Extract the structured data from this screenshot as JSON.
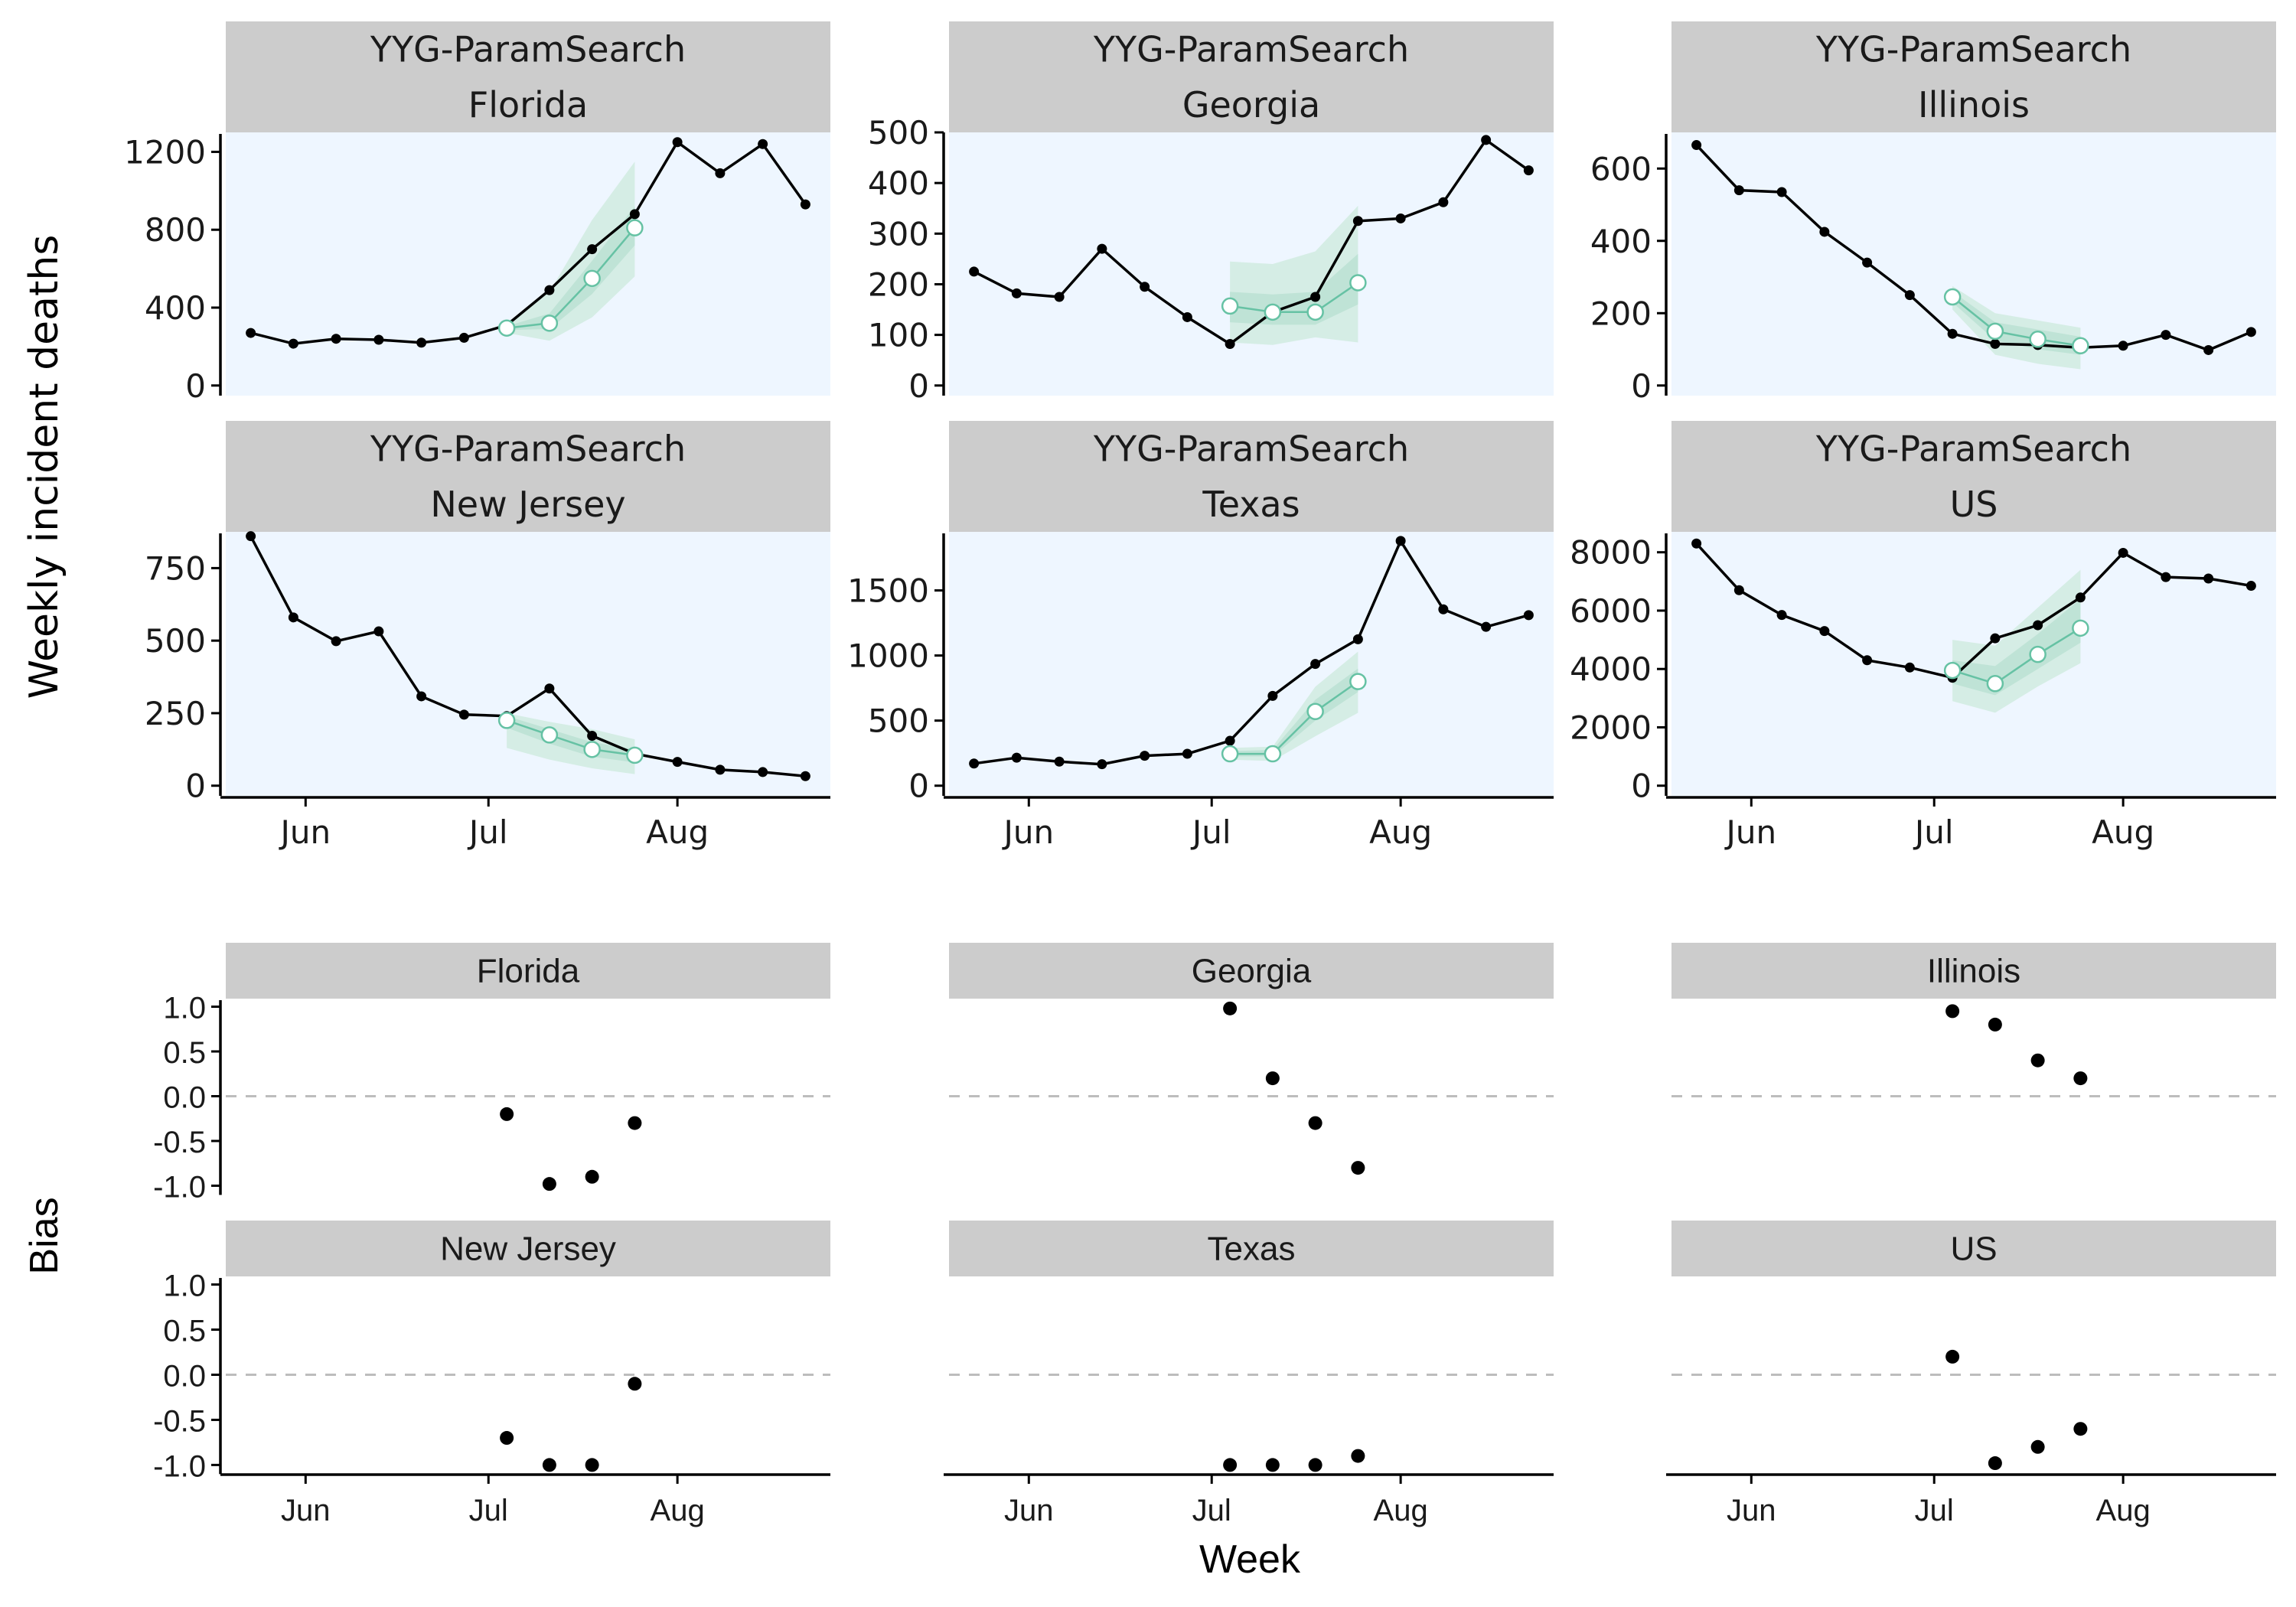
{
  "figure": {
    "top_ylabel": "Weekly incident deaths",
    "bottom_ylabel": "Bias",
    "bottom_xlabel": "Week",
    "model_name": "YYG-ParamSearch",
    "colors": {
      "strip": "#cccccc",
      "panel_background": "#eef6ff",
      "observed": "#000000",
      "forecast": "#66c2a4",
      "interval_outer": "#d5ede5",
      "interval_inner": "#bfe3d6",
      "zero_line": "#bdbdbd"
    },
    "x_ticks": [
      {
        "label": "Jun",
        "date": "2020-06-01"
      },
      {
        "label": "Jul",
        "date": "2020-07-01"
      },
      {
        "label": "Aug",
        "date": "2020-08-01"
      }
    ]
  },
  "chart_data": [
    {
      "type": "line",
      "panel": "top",
      "location": "Florida",
      "model": "YYG-ParamSearch",
      "ylim": [
        0,
        1300
      ],
      "yticks": [
        0,
        400,
        800,
        1200
      ],
      "observed": {
        "x": [
          "2020-05-23",
          "2020-05-30",
          "2020-06-06",
          "2020-06-13",
          "2020-06-20",
          "2020-06-27",
          "2020-07-04",
          "2020-07-11",
          "2020-07-18",
          "2020-07-25",
          "2020-08-01",
          "2020-08-08",
          "2020-08-15",
          "2020-08-22"
        ],
        "y": [
          270,
          215,
          240,
          235,
          220,
          245,
          310,
          490,
          700,
          880,
          1250,
          1090,
          1240,
          930
        ]
      },
      "forecast": {
        "x": [
          "2020-07-04",
          "2020-07-11",
          "2020-07-18",
          "2020-07-25"
        ],
        "median": [
          295,
          320,
          550,
          810
        ],
        "lower_95": [
          270,
          230,
          350,
          560
        ],
        "upper_95": [
          320,
          480,
          850,
          1150
        ],
        "lower_50": [
          285,
          290,
          470,
          720
        ],
        "upper_50": [
          305,
          370,
          640,
          920
        ]
      }
    },
    {
      "type": "line",
      "panel": "top",
      "location": "Georgia",
      "model": "YYG-ParamSearch",
      "ylim": [
        0,
        500
      ],
      "yticks": [
        0,
        100,
        200,
        300,
        400,
        500
      ],
      "observed": {
        "x": [
          "2020-05-23",
          "2020-05-30",
          "2020-06-06",
          "2020-06-13",
          "2020-06-20",
          "2020-06-27",
          "2020-07-04",
          "2020-07-11",
          "2020-07-18",
          "2020-07-25",
          "2020-08-01",
          "2020-08-08",
          "2020-08-15",
          "2020-08-22"
        ],
        "y": [
          225,
          182,
          175,
          270,
          195,
          135,
          82,
          145,
          175,
          325,
          330,
          362,
          485,
          425
        ]
      },
      "forecast": {
        "x": [
          "2020-07-04",
          "2020-07-11",
          "2020-07-18",
          "2020-07-25"
        ],
        "median": [
          157,
          145,
          145,
          203
        ],
        "lower_95": [
          85,
          80,
          95,
          85
        ],
        "upper_95": [
          245,
          240,
          265,
          355
        ],
        "lower_50": [
          125,
          120,
          120,
          160
        ],
        "upper_50": [
          185,
          180,
          185,
          260
        ]
      }
    },
    {
      "type": "line",
      "panel": "top",
      "location": "Illinois",
      "model": "YYG-ParamSearch",
      "ylim": [
        0,
        700
      ],
      "yticks": [
        0,
        200,
        400,
        600
      ],
      "observed": {
        "x": [
          "2020-05-23",
          "2020-05-30",
          "2020-06-06",
          "2020-06-13",
          "2020-06-20",
          "2020-06-27",
          "2020-07-04",
          "2020-07-11",
          "2020-07-18",
          "2020-07-25",
          "2020-08-01",
          "2020-08-08",
          "2020-08-15",
          "2020-08-22"
        ],
        "y": [
          665,
          540,
          535,
          425,
          340,
          250,
          143,
          115,
          112,
          105,
          110,
          140,
          98,
          148
        ]
      },
      "forecast": {
        "x": [
          "2020-07-04",
          "2020-07-11",
          "2020-07-18",
          "2020-07-25"
        ],
        "median": [
          245,
          150,
          128,
          110
        ],
        "lower_95": [
          210,
          85,
          60,
          45
        ],
        "upper_95": [
          275,
          200,
          180,
          160
        ],
        "lower_50": [
          230,
          125,
          100,
          85
        ],
        "upper_50": [
          260,
          175,
          155,
          135
        ]
      }
    },
    {
      "type": "line",
      "panel": "top",
      "location": "New Jersey",
      "model": "YYG-ParamSearch",
      "ylim": [
        0,
        875
      ],
      "yticks": [
        0,
        250,
        500,
        750
      ],
      "observed": {
        "x": [
          "2020-05-23",
          "2020-05-30",
          "2020-06-06",
          "2020-06-13",
          "2020-06-20",
          "2020-06-27",
          "2020-07-04",
          "2020-07-11",
          "2020-07-18",
          "2020-07-25",
          "2020-08-01",
          "2020-08-08",
          "2020-08-15",
          "2020-08-22"
        ],
        "y": [
          860,
          580,
          498,
          532,
          308,
          245,
          240,
          335,
          172,
          110,
          82,
          55,
          47,
          33
        ]
      },
      "forecast": {
        "x": [
          "2020-07-04",
          "2020-07-11",
          "2020-07-18",
          "2020-07-25"
        ],
        "median": [
          225,
          175,
          125,
          105
        ],
        "lower_95": [
          130,
          90,
          60,
          40
        ],
        "upper_95": [
          250,
          220,
          195,
          160
        ],
        "lower_50": [
          200,
          145,
          100,
          80
        ],
        "upper_50": [
          240,
          195,
          150,
          125
        ]
      }
    },
    {
      "type": "line",
      "panel": "top",
      "location": "Texas",
      "model": "YYG-ParamSearch",
      "ylim": [
        0,
        1950
      ],
      "yticks": [
        0,
        500,
        1000,
        1500
      ],
      "observed": {
        "x": [
          "2020-05-23",
          "2020-05-30",
          "2020-06-06",
          "2020-06-13",
          "2020-06-20",
          "2020-06-27",
          "2020-07-04",
          "2020-07-11",
          "2020-07-18",
          "2020-07-25",
          "2020-08-01",
          "2020-08-08",
          "2020-08-15",
          "2020-08-22"
        ],
        "y": [
          170,
          215,
          185,
          165,
          230,
          245,
          345,
          690,
          935,
          1125,
          1880,
          1355,
          1220,
          1310
        ]
      },
      "forecast": {
        "x": [
          "2020-07-04",
          "2020-07-11",
          "2020-07-18",
          "2020-07-25"
        ],
        "median": [
          245,
          245,
          570,
          800
        ],
        "lower_95": [
          200,
          190,
          380,
          560
        ],
        "upper_95": [
          290,
          300,
          760,
          1030
        ],
        "lower_50": [
          225,
          225,
          500,
          720
        ],
        "upper_50": [
          265,
          275,
          660,
          900
        ]
      }
    },
    {
      "type": "line",
      "panel": "top",
      "location": "US",
      "model": "YYG-ParamSearch",
      "ylim": [
        0,
        8700
      ],
      "yticks": [
        0,
        2000,
        4000,
        6000,
        8000
      ],
      "observed": {
        "x": [
          "2020-05-23",
          "2020-05-30",
          "2020-06-06",
          "2020-06-13",
          "2020-06-20",
          "2020-06-27",
          "2020-07-04",
          "2020-07-11",
          "2020-07-18",
          "2020-07-25",
          "2020-08-01",
          "2020-08-08",
          "2020-08-15",
          "2020-08-22"
        ],
        "y": [
          8300,
          6700,
          5850,
          5300,
          4300,
          4050,
          3700,
          5050,
          5500,
          6450,
          7980,
          7150,
          7100,
          6850
        ]
      },
      "forecast": {
        "x": [
          "2020-07-04",
          "2020-07-11",
          "2020-07-18",
          "2020-07-25"
        ],
        "median": [
          3950,
          3500,
          4500,
          5400
        ],
        "lower_95": [
          2900,
          2500,
          3400,
          4200
        ],
        "upper_95": [
          5000,
          4800,
          6100,
          7400
        ],
        "lower_50": [
          3500,
          3100,
          4000,
          4900
        ],
        "upper_50": [
          4300,
          4100,
          5200,
          6400
        ]
      }
    },
    {
      "type": "scatter",
      "panel": "bottom",
      "location": "Florida",
      "ylim": [
        -1,
        1
      ],
      "yticks": [
        -1.0,
        -0.5,
        0.0,
        0.5,
        1.0
      ],
      "x": [
        "2020-07-04",
        "2020-07-11",
        "2020-07-18",
        "2020-07-25"
      ],
      "y": [
        -0.2,
        -0.98,
        -0.9,
        -0.3
      ]
    },
    {
      "type": "scatter",
      "panel": "bottom",
      "location": "Georgia",
      "ylim": [
        -1,
        1
      ],
      "yticks": [
        -1.0,
        -0.5,
        0.0,
        0.5,
        1.0
      ],
      "x": [
        "2020-07-04",
        "2020-07-11",
        "2020-07-18",
        "2020-07-25"
      ],
      "y": [
        0.98,
        0.2,
        -0.3,
        -0.8
      ]
    },
    {
      "type": "scatter",
      "panel": "bottom",
      "location": "Illinois",
      "ylim": [
        -1,
        1
      ],
      "yticks": [
        -1.0,
        -0.5,
        0.0,
        0.5,
        1.0
      ],
      "x": [
        "2020-07-04",
        "2020-07-11",
        "2020-07-18",
        "2020-07-25"
      ],
      "y": [
        0.95,
        0.8,
        0.4,
        0.2
      ]
    },
    {
      "type": "scatter",
      "panel": "bottom",
      "location": "New Jersey",
      "ylim": [
        -1,
        1
      ],
      "yticks": [
        -1.0,
        -0.5,
        0.0,
        0.5,
        1.0
      ],
      "x": [
        "2020-07-04",
        "2020-07-11",
        "2020-07-18",
        "2020-07-25"
      ],
      "y": [
        -0.7,
        -1.0,
        -1.0,
        -0.1
      ]
    },
    {
      "type": "scatter",
      "panel": "bottom",
      "location": "Texas",
      "ylim": [
        -1,
        1
      ],
      "yticks": [
        -1.0,
        -0.5,
        0.0,
        0.5,
        1.0
      ],
      "x": [
        "2020-07-04",
        "2020-07-11",
        "2020-07-18",
        "2020-07-25"
      ],
      "y": [
        -1.0,
        -1.0,
        -1.0,
        -0.9
      ]
    },
    {
      "type": "scatter",
      "panel": "bottom",
      "location": "US",
      "ylim": [
        -1,
        1
      ],
      "yticks": [
        -1.0,
        -0.5,
        0.0,
        0.5,
        1.0
      ],
      "x": [
        "2020-07-04",
        "2020-07-11",
        "2020-07-18",
        "2020-07-25"
      ],
      "y": [
        0.2,
        -0.98,
        -0.8,
        -0.6
      ]
    }
  ]
}
